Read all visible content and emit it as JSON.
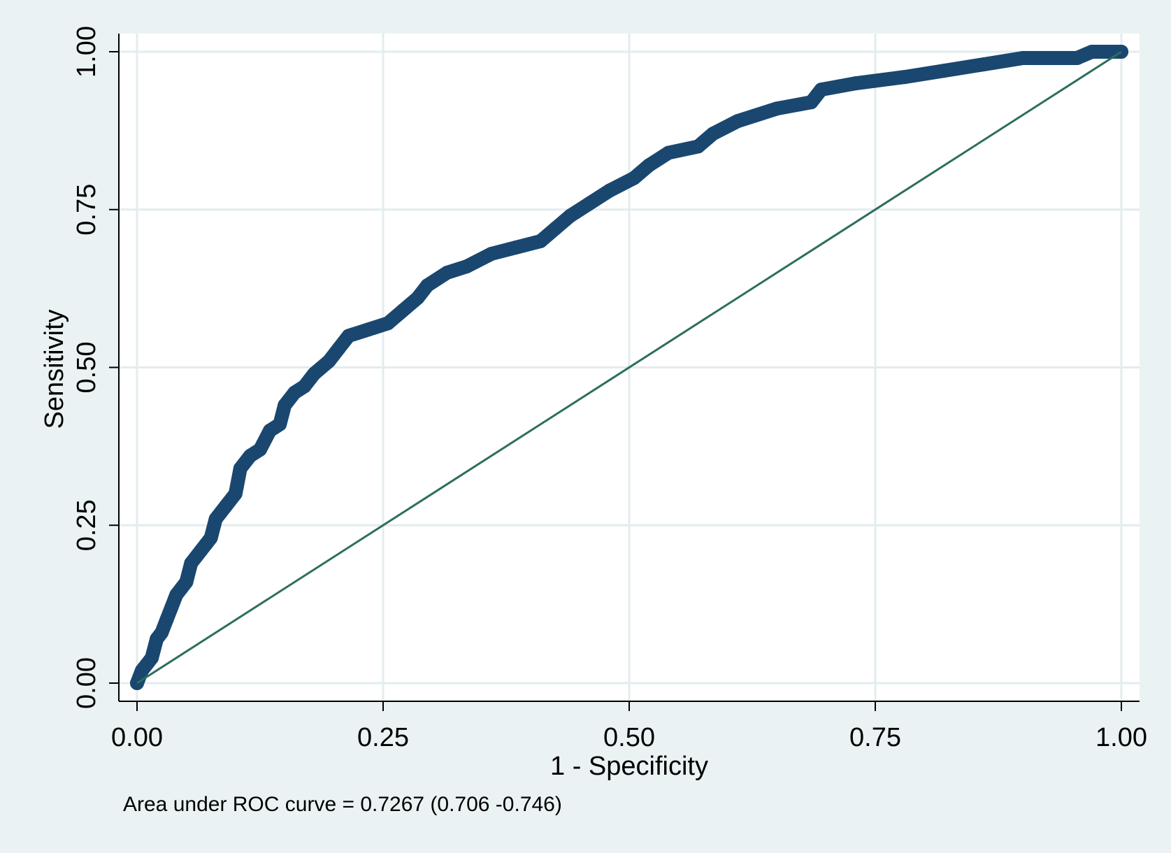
{
  "chart_data": {
    "type": "line",
    "title": "",
    "xlabel": "1 - Specificity",
    "ylabel": "Sensitivity",
    "xlim": [
      0,
      1
    ],
    "ylim": [
      0,
      1
    ],
    "grid": true,
    "x_ticks": [
      "0.00",
      "0.25",
      "0.50",
      "0.75",
      "1.00"
    ],
    "y_ticks": [
      "0.00",
      "0.25",
      "0.50",
      "0.75",
      "1.00"
    ],
    "note": "Area under ROC curve = 0.7267 (0.706 -0.746)",
    "series": [
      {
        "role": "roc-curve",
        "color": "#1a476f",
        "points": [
          [
            0.0,
            0.0
          ],
          [
            0.005,
            0.02
          ],
          [
            0.01,
            0.03
          ],
          [
            0.015,
            0.04
          ],
          [
            0.02,
            0.07
          ],
          [
            0.025,
            0.08
          ],
          [
            0.03,
            0.1
          ],
          [
            0.035,
            0.12
          ],
          [
            0.04,
            0.14
          ],
          [
            0.045,
            0.15
          ],
          [
            0.05,
            0.16
          ],
          [
            0.055,
            0.19
          ],
          [
            0.06,
            0.2
          ],
          [
            0.065,
            0.21
          ],
          [
            0.07,
            0.22
          ],
          [
            0.075,
            0.23
          ],
          [
            0.08,
            0.26
          ],
          [
            0.085,
            0.27
          ],
          [
            0.09,
            0.28
          ],
          [
            0.1,
            0.3
          ],
          [
            0.105,
            0.34
          ],
          [
            0.115,
            0.36
          ],
          [
            0.125,
            0.37
          ],
          [
            0.135,
            0.4
          ],
          [
            0.145,
            0.41
          ],
          [
            0.15,
            0.44
          ],
          [
            0.16,
            0.46
          ],
          [
            0.17,
            0.47
          ],
          [
            0.18,
            0.49
          ],
          [
            0.195,
            0.51
          ],
          [
            0.205,
            0.53
          ],
          [
            0.215,
            0.55
          ],
          [
            0.235,
            0.56
          ],
          [
            0.255,
            0.57
          ],
          [
            0.27,
            0.59
          ],
          [
            0.285,
            0.61
          ],
          [
            0.295,
            0.63
          ],
          [
            0.315,
            0.65
          ],
          [
            0.335,
            0.66
          ],
          [
            0.36,
            0.68
          ],
          [
            0.385,
            0.69
          ],
          [
            0.41,
            0.7
          ],
          [
            0.425,
            0.72
          ],
          [
            0.44,
            0.74
          ],
          [
            0.46,
            0.76
          ],
          [
            0.48,
            0.78
          ],
          [
            0.505,
            0.8
          ],
          [
            0.52,
            0.82
          ],
          [
            0.54,
            0.84
          ],
          [
            0.57,
            0.85
          ],
          [
            0.585,
            0.87
          ],
          [
            0.61,
            0.89
          ],
          [
            0.65,
            0.91
          ],
          [
            0.685,
            0.92
          ],
          [
            0.695,
            0.94
          ],
          [
            0.73,
            0.95
          ],
          [
            0.78,
            0.96
          ],
          [
            0.82,
            0.97
          ],
          [
            0.86,
            0.98
          ],
          [
            0.9,
            0.99
          ],
          [
            0.955,
            0.99
          ],
          [
            0.97,
            1.0
          ],
          [
            1.0,
            1.0
          ]
        ]
      },
      {
        "role": "reference-line",
        "color": "#2d6e5e",
        "points": [
          [
            0.0,
            0.0
          ],
          [
            1.0,
            1.0
          ]
        ]
      }
    ]
  }
}
